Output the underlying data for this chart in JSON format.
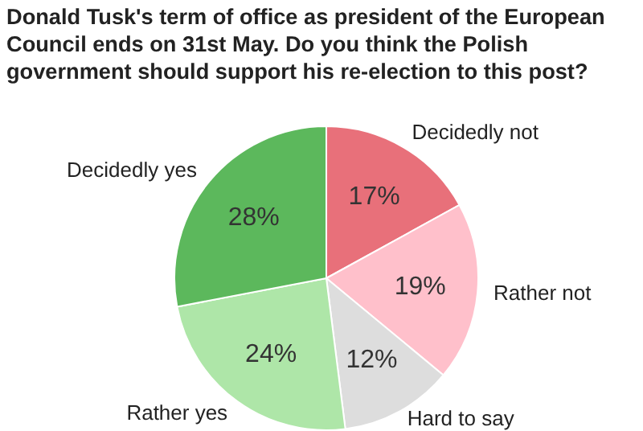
{
  "chart_data": {
    "type": "pie",
    "title": "Donald Tusk's term of office as president of the European Council ends on 31st May. Do you think the Polish government should support his re-election to this post?",
    "categories": [
      "Decidedly not",
      "Rather not",
      "Hard to say",
      "Rather yes",
      "Decidedly yes"
    ],
    "values": [
      17,
      19,
      12,
      24,
      28
    ],
    "colors": [
      "#e8707a",
      "#ffc0cb",
      "#dddddd",
      "#aee6a8",
      "#5cb85c"
    ],
    "value_labels": [
      "17%",
      "19%",
      "12%",
      "24%",
      "28%"
    ],
    "legend": false
  }
}
